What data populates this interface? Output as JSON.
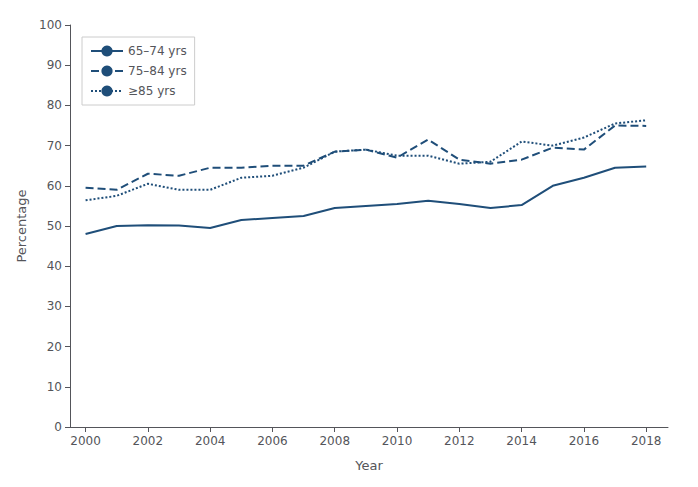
{
  "chart_data": {
    "type": "line",
    "xlabel": "Year",
    "ylabel": "Percentage",
    "x": [
      2000,
      2001,
      2002,
      2003,
      2004,
      2005,
      2006,
      2007,
      2008,
      2009,
      2010,
      2011,
      2012,
      2013,
      2014,
      2015,
      2016,
      2017,
      2018
    ],
    "series": [
      {
        "name": "65–74 yrs",
        "color": "#1f4e79",
        "line_style": "solid",
        "values": [
          48.0,
          50.0,
          50.2,
          50.1,
          49.5,
          51.5,
          52.0,
          52.5,
          54.5,
          55.0,
          55.5,
          56.3,
          55.5,
          54.5,
          55.2,
          60.0,
          62.0,
          64.5,
          64.8
        ]
      },
      {
        "name": "75–84 yrs",
        "color": "#1f4e79",
        "line_style": "dashed",
        "values": [
          59.5,
          59.0,
          63.0,
          62.5,
          64.5,
          64.5,
          65.0,
          65.0,
          68.5,
          69.0,
          67.0,
          71.5,
          66.5,
          65.5,
          66.5,
          69.5,
          69.0,
          75.0,
          74.9
        ]
      },
      {
        "name": "≥85 yrs",
        "color": "#1f4e79",
        "line_style": "dotted",
        "values": [
          56.4,
          57.5,
          60.5,
          59.0,
          59.0,
          62.0,
          62.5,
          64.5,
          68.5,
          69.0,
          67.5,
          67.5,
          65.5,
          66.0,
          71.0,
          70.0,
          72.0,
          75.5,
          76.3
        ]
      }
    ],
    "xlim": [
      1999.5,
      2018.7
    ],
    "xticks": [
      2000,
      2002,
      2004,
      2006,
      2008,
      2010,
      2012,
      2014,
      2016,
      2018
    ],
    "ylim": [
      0,
      100
    ],
    "yticks": [
      0,
      10,
      20,
      30,
      40,
      50,
      60,
      70,
      80,
      90,
      100
    ],
    "grid": false,
    "legend": "upper left"
  }
}
